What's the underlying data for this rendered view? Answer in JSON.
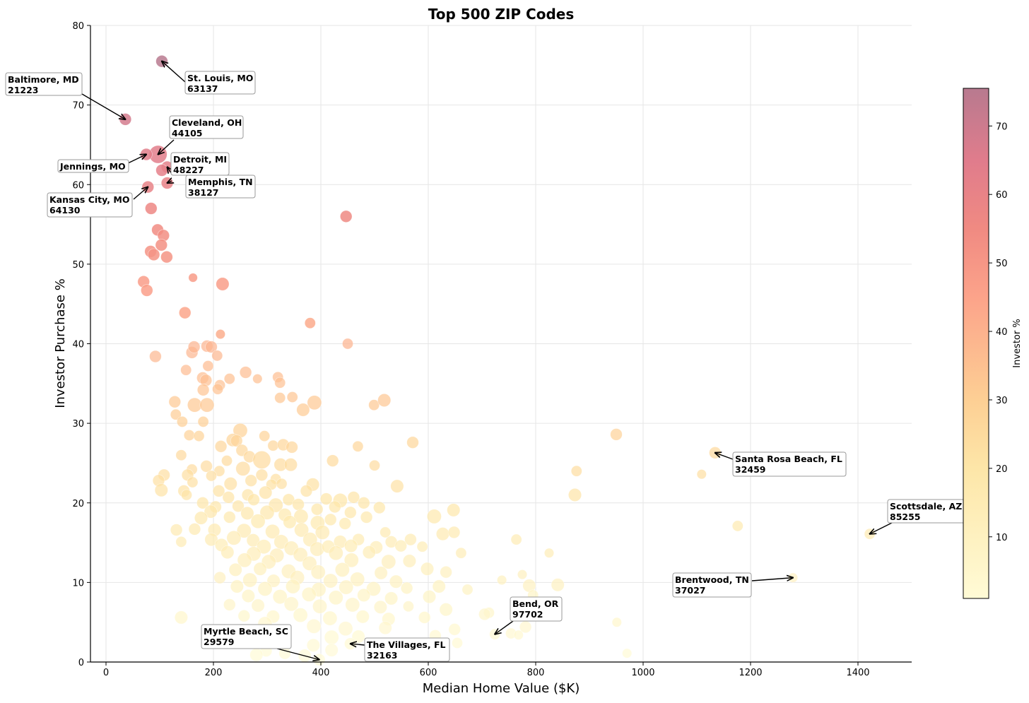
{
  "chart_data": {
    "type": "scatter",
    "title": "Top 500 ZIP Codes",
    "xlabel": "Median Home Value ($K)",
    "ylabel": "Investor Purchase %",
    "xlim": [
      -30,
      1500
    ],
    "ylim": [
      0,
      80
    ],
    "xticks": [
      "0",
      "200",
      "400",
      "600",
      "800",
      "1000",
      "1200",
      "1400"
    ],
    "yticks": [
      "0",
      "10",
      "20",
      "30",
      "40",
      "50",
      "60",
      "70",
      "80"
    ],
    "grid": true,
    "colorbar": {
      "label": "Investor %",
      "range": [
        1,
        75.5
      ],
      "ticks": [
        "10",
        "20",
        "30",
        "40",
        "50",
        "60",
        "70"
      ]
    },
    "colors": {
      "low": "#fffbd6",
      "c20": "#fde6a8",
      "c30": "#fdcf94",
      "c45": "#fca38a",
      "c55": "#f08a82",
      "c65": "#e07c8c",
      "high": "#b87a8f"
    },
    "points": [
      [
        104,
        75.5,
        2
      ],
      [
        36,
        68.2,
        2
      ],
      [
        97,
        63.8,
        3
      ],
      [
        75,
        63.8,
        2
      ],
      [
        114,
        62.2,
        2
      ],
      [
        104,
        61.8,
        2
      ],
      [
        114,
        60.2,
        2
      ],
      [
        78,
        59.7,
        2
      ],
      [
        84,
        57,
        2
      ],
      [
        447,
        56,
        2
      ],
      [
        96,
        54.3,
        2
      ],
      [
        107,
        53.6,
        2
      ],
      [
        103,
        52.4,
        2
      ],
      [
        83,
        51.6,
        2
      ],
      [
        89,
        51.2,
        2
      ],
      [
        113,
        50.9,
        2
      ],
      [
        70,
        47.8,
        2
      ],
      [
        76,
        46.7,
        2
      ],
      [
        162,
        48.3,
        1.5
      ],
      [
        217,
        47.5,
        2.2
      ],
      [
        147,
        43.9,
        2
      ],
      [
        380,
        42.6,
        1.8
      ],
      [
        213,
        41.2,
        1.6
      ],
      [
        450,
        40,
        1.8
      ],
      [
        92,
        38.4,
        2
      ],
      [
        160,
        38.9,
        2
      ],
      [
        164,
        39.6,
        2
      ],
      [
        188,
        39.7,
        2
      ],
      [
        196,
        39.6,
        2
      ],
      [
        207,
        38.5,
        1.8
      ],
      [
        190,
        37.2,
        1.8
      ],
      [
        149,
        36.7,
        1.8
      ],
      [
        260,
        36.4,
        2
      ],
      [
        320,
        35.8,
        1.8
      ],
      [
        324,
        35.1,
        1.8
      ],
      [
        282,
        35.6,
        1.6
      ],
      [
        230,
        35.6,
        1.8
      ],
      [
        180,
        35.7,
        2
      ],
      [
        186,
        35.4,
        2
      ],
      [
        212,
        34.8,
        1.8
      ],
      [
        181,
        34.2,
        2
      ],
      [
        208,
        34.3,
        1.8
      ],
      [
        347,
        33.3,
        1.8
      ],
      [
        324,
        33.2,
        1.8
      ],
      [
        128,
        32.7,
        2
      ],
      [
        165,
        32.3,
        2.4
      ],
      [
        188,
        32.3,
        2.4
      ],
      [
        388,
        32.6,
        2.4
      ],
      [
        367,
        31.7,
        2.2
      ],
      [
        499,
        32.3,
        1.8
      ],
      [
        518,
        32.9,
        2.2
      ],
      [
        130,
        31.1,
        1.8
      ],
      [
        142,
        30.2,
        1.8
      ],
      [
        181,
        30.2,
        1.8
      ],
      [
        155,
        28.5,
        1.8
      ],
      [
        173,
        28.4,
        1.8
      ],
      [
        250,
        29.1,
        2.4
      ],
      [
        295,
        28.4,
        1.8
      ],
      [
        950,
        28.6,
        2
      ],
      [
        571,
        27.6,
        2
      ],
      [
        311,
        27.2,
        1.8
      ],
      [
        330,
        27.3,
        2
      ],
      [
        346,
        27,
        2
      ],
      [
        469,
        27.1,
        1.8
      ],
      [
        214,
        27.1,
        2
      ],
      [
        236,
        27.9,
        2.2
      ],
      [
        243,
        27.8,
        2
      ],
      [
        253,
        26.6,
        2
      ],
      [
        140,
        26,
        1.8
      ],
      [
        267,
        25.8,
        2
      ],
      [
        1134,
        26.3,
        2
      ],
      [
        290,
        25.4,
        3
      ],
      [
        225,
        25.3,
        1.8
      ],
      [
        422,
        25.3,
        2
      ],
      [
        325,
        24.8,
        2.2
      ],
      [
        344,
        24.8,
        2.2
      ],
      [
        187,
        24.6,
        2
      ],
      [
        500,
        24.7,
        1.8
      ],
      [
        160,
        24.2,
        1.8
      ],
      [
        255,
        24.3,
        2.4
      ],
      [
        211,
        24,
        1.8
      ],
      [
        876,
        24,
        1.8
      ],
      [
        108,
        23.5,
        2
      ],
      [
        1109,
        23.6,
        1.6
      ],
      [
        152,
        23.5,
        2
      ],
      [
        196,
        23.4,
        1.8
      ],
      [
        290,
        23.5,
        2
      ],
      [
        270,
        22.8,
        2
      ],
      [
        316,
        23,
        1.8
      ],
      [
        98,
        22.8,
        2
      ],
      [
        161,
        22.6,
        1.8
      ],
      [
        232,
        22.4,
        2.2
      ],
      [
        308,
        22.3,
        1.8
      ],
      [
        327,
        22.4,
        1.8
      ],
      [
        385,
        22.3,
        2.2
      ],
      [
        542,
        22.1,
        2.2
      ],
      [
        103,
        21.6,
        2.2
      ],
      [
        145,
        21.5,
        2
      ],
      [
        210,
        21.5,
        2
      ],
      [
        264,
        21,
        2
      ],
      [
        297,
        21.3,
        2.2
      ],
      [
        373,
        21.5,
        2
      ],
      [
        410,
        20.5,
        2
      ],
      [
        873,
        21,
        2.2
      ],
      [
        150,
        21,
        1.8
      ],
      [
        228,
        20.7,
        2
      ],
      [
        275,
        20.4,
        2
      ],
      [
        340,
        20.4,
        2
      ],
      [
        358,
        19.8,
        2
      ],
      [
        436,
        20.3,
        2.4
      ],
      [
        461,
        20.7,
        2
      ],
      [
        480,
        20,
        2
      ],
      [
        509,
        19.4,
        2
      ],
      [
        647,
        19.1,
        2.2
      ],
      [
        180,
        20,
        2
      ],
      [
        204,
        19.5,
        2
      ],
      [
        246,
        19.6,
        2
      ],
      [
        316,
        19.7,
        2.4
      ],
      [
        393,
        19.2,
        2
      ],
      [
        426,
        19.5,
        2
      ],
      [
        195,
        18.9,
        2.2
      ],
      [
        263,
        18.7,
        2.2
      ],
      [
        300,
        18.8,
        2.4
      ],
      [
        333,
        18.5,
        2.2
      ],
      [
        363,
        18.3,
        2.4
      ],
      [
        455,
        18.8,
        2
      ],
      [
        485,
        18.2,
        2
      ],
      [
        611,
        18.3,
        2.4
      ],
      [
        177,
        18.1,
        2.2
      ],
      [
        230,
        18.2,
        2
      ],
      [
        283,
        17.7,
        2.4
      ],
      [
        342,
        17.6,
        2.2
      ],
      [
        394,
        17.5,
        2.4
      ],
      [
        418,
        17.9,
        2
      ],
      [
        445,
        17.4,
        2
      ],
      [
        1176,
        17.1,
        1.8
      ],
      [
        131,
        16.6,
        2
      ],
      [
        165,
        16.7,
        2
      ],
      [
        202,
        16.6,
        2.2
      ],
      [
        257,
        16.5,
        2.4
      ],
      [
        310,
        16.4,
        2.4
      ],
      [
        364,
        16.6,
        2.4
      ],
      [
        403,
        16.3,
        2.4
      ],
      [
        520,
        16.3,
        1.8
      ],
      [
        627,
        16.1,
        2.2
      ],
      [
        648,
        16.3,
        2
      ],
      [
        1422,
        16.1,
        1.8
      ],
      [
        140,
        15.1,
        1.8
      ],
      [
        196,
        15.4,
        2.2
      ],
      [
        238,
        15.6,
        2.4
      ],
      [
        274,
        15.3,
        2.2
      ],
      [
        326,
        15.1,
        2.4
      ],
      [
        380,
        15.4,
        2.4
      ],
      [
        436,
        15.1,
        2.2
      ],
      [
        470,
        15.4,
        2
      ],
      [
        531,
        15.1,
        2
      ],
      [
        567,
        15.4,
        2
      ],
      [
        764,
        15.4,
        1.8
      ],
      [
        215,
        14.7,
        2.2
      ],
      [
        294,
        14.5,
        2.4
      ],
      [
        345,
        14.3,
        2.4
      ],
      [
        393,
        14.2,
        2.4
      ],
      [
        414,
        14.5,
        2.2
      ],
      [
        456,
        14.6,
        2.2
      ],
      [
        503,
        14.4,
        2.2
      ],
      [
        549,
        14.6,
        2
      ],
      [
        589,
        14.5,
        1.8
      ],
      [
        226,
        13.8,
        2.2
      ],
      [
        275,
        13.6,
        2.4
      ],
      [
        318,
        13.4,
        2.4
      ],
      [
        362,
        13.5,
        2.4
      ],
      [
        428,
        13.7,
        2.4
      ],
      [
        490,
        13.8,
        2.2
      ],
      [
        661,
        13.7,
        1.8
      ],
      [
        825,
        13.7,
        1.6
      ],
      [
        258,
        12.8,
        2.4
      ],
      [
        303,
        12.6,
        2.4
      ],
      [
        379,
        12.4,
        2.4
      ],
      [
        457,
        12.8,
        2.4
      ],
      [
        526,
        12.6,
        2.4
      ],
      [
        565,
        12.7,
        2.2
      ],
      [
        241,
        11.6,
        2.2
      ],
      [
        287,
        11.7,
        2.2
      ],
      [
        340,
        11.4,
        2.4
      ],
      [
        395,
        11.3,
        2.4
      ],
      [
        440,
        11.6,
        2.4
      ],
      [
        512,
        11.2,
        2.2
      ],
      [
        598,
        11.7,
        2.2
      ],
      [
        633,
        11.3,
        2
      ],
      [
        775,
        11,
        1.6
      ],
      [
        212,
        10.6,
        2
      ],
      [
        268,
        10.3,
        2.4
      ],
      [
        312,
        10.2,
        2.2
      ],
      [
        356,
        10.6,
        2.4
      ],
      [
        418,
        10.2,
        2.4
      ],
      [
        468,
        10.4,
        2.4
      ],
      [
        540,
        10.1,
        2.2
      ],
      [
        737,
        10.3,
        1.6
      ],
      [
        1279,
        10.6,
        1.6
      ],
      [
        244,
        9.5,
        2.2
      ],
      [
        296,
        9.2,
        2.4
      ],
      [
        348,
        9.5,
        2.4
      ],
      [
        396,
        9.1,
        2.4
      ],
      [
        447,
        9.4,
        2.4
      ],
      [
        498,
        9.2,
        2.4
      ],
      [
        560,
        9.3,
        2
      ],
      [
        620,
        9.5,
        2.2
      ],
      [
        673,
        9.1,
        1.8
      ],
      [
        788,
        9.6,
        2.2
      ],
      [
        841,
        9.7,
        2.2
      ],
      [
        265,
        8.3,
        2.2
      ],
      [
        324,
        8.2,
        2.4
      ],
      [
        378,
        8.5,
        2.4
      ],
      [
        428,
        8.1,
        2.4
      ],
      [
        480,
        8.4,
        2.2
      ],
      [
        531,
        8,
        2.2
      ],
      [
        602,
        8.2,
        2.2
      ],
      [
        795,
        8.4,
        1.8
      ],
      [
        230,
        7.2,
        2
      ],
      [
        283,
        7.1,
        2.2
      ],
      [
        345,
        7.3,
        2.4
      ],
      [
        398,
        7,
        2.4
      ],
      [
        459,
        7.2,
        2.4
      ],
      [
        511,
        6.9,
        2.2
      ],
      [
        563,
        7,
        1.8
      ],
      [
        633,
        6.6,
        2.2
      ],
      [
        713,
        6.2,
        1.8
      ],
      [
        705,
        6,
        2
      ],
      [
        257,
        5.8,
        2
      ],
      [
        140,
        5.6,
        2.2
      ],
      [
        311,
        5.7,
        2.2
      ],
      [
        362,
        5.9,
        2.4
      ],
      [
        417,
        5.5,
        2.4
      ],
      [
        478,
        5.7,
        2.2
      ],
      [
        526,
        5.4,
        2.2
      ],
      [
        593,
        5.6,
        2
      ],
      [
        951,
        5,
        1.6
      ],
      [
        296,
        4.8,
        2.4
      ],
      [
        387,
        4.5,
        2.4
      ],
      [
        446,
        4.2,
        2.4
      ],
      [
        520,
        4.3,
        2.2
      ],
      [
        649,
        4.1,
        2
      ],
      [
        781,
        4.4,
        2
      ],
      [
        724,
        3.5,
        1.8
      ],
      [
        754,
        3.6,
        1.8
      ],
      [
        768,
        3.4,
        1.6
      ],
      [
        324,
        3.3,
        2.2
      ],
      [
        420,
        3.1,
        2.4
      ],
      [
        470,
        3.2,
        2.2
      ],
      [
        613,
        3.3,
        2
      ],
      [
        654,
        2.4,
        1.8
      ],
      [
        455,
        2.3,
        2
      ],
      [
        386,
        2.1,
        2.2
      ],
      [
        420,
        1.5,
        2.2
      ],
      [
        298,
        1.4,
        2
      ],
      [
        333,
        1.1,
        2
      ],
      [
        970,
        1.1,
        1.6
      ],
      [
        370,
        0.8,
        2.2
      ],
      [
        397,
        0.3,
        2
      ],
      [
        280,
        0.9,
        2.2
      ]
    ],
    "annotations": [
      {
        "name": "St. Louis, MO",
        "zip": "63137",
        "x": 104,
        "y": 75.5
      },
      {
        "name": "Baltimore, MD",
        "zip": "21223",
        "x": 36,
        "y": 68.2
      },
      {
        "name": "Cleveland, OH",
        "zip": "44105",
        "x": 97,
        "y": 63.8
      },
      {
        "name": "Jennings, MO",
        "zip": "",
        "x": 75,
        "y": 63.8
      },
      {
        "name": "Detroit, MI",
        "zip": "48227",
        "x": 114,
        "y": 62.2
      },
      {
        "name": "Kansas City, MO",
        "zip": "64130",
        "x": 78,
        "y": 59.7
      },
      {
        "name": "Memphis, TN",
        "zip": "38127",
        "x": 114,
        "y": 60.2
      },
      {
        "name": "Santa Rosa Beach, FL",
        "zip": "32459",
        "x": 1134,
        "y": 26.3
      },
      {
        "name": "Scottsdale, AZ",
        "zip": "85255",
        "x": 1422,
        "y": 16.1
      },
      {
        "name": "Brentwood, TN",
        "zip": "37027",
        "x": 1279,
        "y": 10.6
      },
      {
        "name": "Bend, OR",
        "zip": "97702",
        "x": 724,
        "y": 3.5
      },
      {
        "name": "Myrtle Beach, SC",
        "zip": "29579",
        "x": 397,
        "y": 0.3
      },
      {
        "name": "The Villages, FL",
        "zip": "32163",
        "x": 455,
        "y": 2.3
      }
    ]
  }
}
